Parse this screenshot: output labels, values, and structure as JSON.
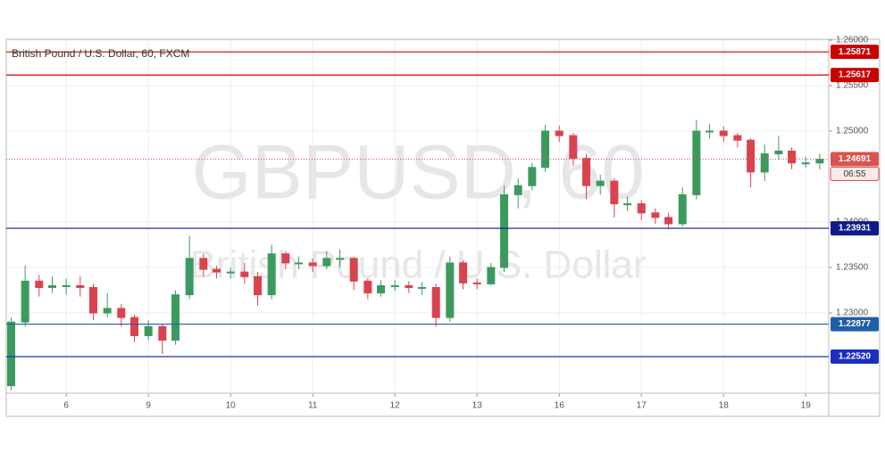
{
  "chart_data": {
    "type": "candlestick",
    "title": "British Pound / U.S. Dollar, 60, FXCM",
    "watermark": "GBPUSD, 60",
    "watermark_subtitle": "British Pound / U.S. Dollar",
    "up_color": "#3c9a5f",
    "down_color": "#d9434f",
    "x": [
      -0.67,
      -0.5,
      -0.33,
      -0.17,
      0,
      0.17,
      0.33,
      0.5,
      0.67,
      0.83,
      1,
      1.17,
      1.33,
      1.5,
      1.67,
      1.83,
      2,
      2.17,
      2.33,
      2.5,
      2.67,
      2.83,
      3,
      3.17,
      3.33,
      3.5,
      3.67,
      3.83,
      4,
      4.17,
      4.33,
      4.5,
      4.67,
      4.83,
      5,
      5.17,
      5.33,
      5.5,
      5.67,
      5.83,
      6,
      6.17,
      6.33,
      6.5,
      6.67,
      6.83,
      7,
      7.17,
      7.33,
      7.5,
      7.67,
      7.83,
      8,
      8.17,
      8.33,
      8.5,
      8.67,
      8.83,
      9,
      9.17
    ],
    "open": [
      1.222,
      1.229,
      1.2335,
      1.2328,
      1.233,
      1.233,
      1.2328,
      1.23,
      1.2305,
      1.2295,
      1.2275,
      1.2285,
      1.227,
      1.232,
      1.236,
      1.2348,
      1.2345,
      1.2345,
      1.234,
      1.232,
      1.2365,
      1.2355,
      1.2355,
      1.2352,
      1.236,
      1.236,
      1.2335,
      1.2322,
      1.233,
      1.233,
      1.2328,
      1.2328,
      1.2295,
      1.2355,
      1.2333,
      1.2332,
      1.235,
      1.243,
      1.244,
      1.246,
      1.25,
      1.2495,
      1.247,
      1.244,
      1.2445,
      1.242,
      1.242,
      1.241,
      1.2405,
      1.2398,
      1.243,
      1.25,
      1.25,
      1.2495,
      1.249,
      1.2455,
      1.2475,
      1.2478,
      1.2465,
      1.2465
    ],
    "high": [
      1.2295,
      1.2352,
      1.2342,
      1.234,
      1.2338,
      1.234,
      1.2332,
      1.2322,
      1.231,
      1.2298,
      1.2292,
      1.2288,
      1.2325,
      1.2385,
      1.2365,
      1.2352,
      1.235,
      1.2355,
      1.2345,
      1.2375,
      1.2368,
      1.2362,
      1.236,
      1.2368,
      1.237,
      1.2362,
      1.2338,
      1.2336,
      1.2336,
      1.2335,
      1.2334,
      1.2332,
      1.2362,
      1.2358,
      1.2338,
      1.2355,
      1.244,
      1.2448,
      1.2465,
      1.2507,
      1.2506,
      1.2498,
      1.2475,
      1.2452,
      1.2448,
      1.2428,
      1.2424,
      1.2415,
      1.241,
      1.2438,
      1.2512,
      1.2508,
      1.2505,
      1.2498,
      1.2492,
      1.2485,
      1.2495,
      1.2482,
      1.2472,
      1.2475
    ],
    "low": [
      1.2215,
      1.2285,
      1.2318,
      1.2322,
      1.232,
      1.2318,
      1.2292,
      1.2295,
      1.2285,
      1.2268,
      1.227,
      1.2255,
      1.2265,
      1.2315,
      1.234,
      1.2338,
      1.2338,
      1.2332,
      1.2308,
      1.2315,
      1.2348,
      1.2348,
      1.2345,
      1.2348,
      1.235,
      1.2325,
      1.2315,
      1.2318,
      1.2324,
      1.2322,
      1.232,
      1.2285,
      1.229,
      1.2326,
      1.2326,
      1.233,
      1.2345,
      1.2415,
      1.2435,
      1.2455,
      1.2488,
      1.2462,
      1.2425,
      1.243,
      1.2405,
      1.2412,
      1.2402,
      1.2398,
      1.2392,
      1.2395,
      1.2425,
      1.2492,
      1.2488,
      1.2482,
      1.2438,
      1.2445,
      1.2468,
      1.2458,
      1.246,
      1.2458
    ],
    "close": [
      1.229,
      1.2335,
      1.2328,
      1.233,
      1.233,
      1.2328,
      1.23,
      1.2305,
      1.2295,
      1.2275,
      1.2285,
      1.227,
      1.232,
      1.236,
      1.2348,
      1.2345,
      1.2345,
      1.234,
      1.232,
      1.2365,
      1.2355,
      1.2355,
      1.2352,
      1.236,
      1.236,
      1.2335,
      1.2322,
      1.233,
      1.233,
      1.2328,
      1.2328,
      1.2295,
      1.2355,
      1.2333,
      1.2332,
      1.235,
      1.243,
      1.244,
      1.246,
      1.25,
      1.2495,
      1.247,
      1.244,
      1.2445,
      1.242,
      1.242,
      1.241,
      1.2405,
      1.2398,
      1.243,
      1.25,
      1.25,
      1.2495,
      1.249,
      1.2455,
      1.2475,
      1.2478,
      1.2465,
      1.2465,
      1.2469
    ],
    "xlim": [
      -0.73,
      9.28
    ],
    "ylim": [
      1.22118,
      1.2601
    ],
    "xticks": [
      {
        "value": 0,
        "label": "6"
      },
      {
        "value": 1,
        "label": "9"
      },
      {
        "value": 2,
        "label": "10"
      },
      {
        "value": 3,
        "label": "11"
      },
      {
        "value": 4,
        "label": "12"
      },
      {
        "value": 5,
        "label": "13"
      },
      {
        "value": 6,
        "label": "16"
      },
      {
        "value": 7,
        "label": "17"
      },
      {
        "value": 8,
        "label": "18"
      },
      {
        "value": 9,
        "label": "19"
      }
    ],
    "yticks": [
      {
        "value": 1.26,
        "label": "1.26000"
      },
      {
        "value": 1.255,
        "label": "1.25500"
      },
      {
        "value": 1.25,
        "label": "1.25000"
      },
      {
        "value": 1.24,
        "label": "1.24000"
      },
      {
        "value": 1.235,
        "label": "1.23500"
      },
      {
        "value": 1.23,
        "label": "1.23000"
      }
    ],
    "grid": true,
    "levels": [
      {
        "value": 1.25871,
        "label": "1.25871",
        "color": "#cc0000"
      },
      {
        "value": 1.25617,
        "label": "1.25617",
        "color": "#cc0000"
      },
      {
        "value": 1.23931,
        "label": "1.23931",
        "color": "#0d1a8c"
      },
      {
        "value": 1.22877,
        "label": "1.22877",
        "color": "#1f5fa8"
      },
      {
        "value": 1.2252,
        "label": "1.22520",
        "color": "#1a2fc0"
      }
    ],
    "last_price": {
      "value": 1.24691,
      "label": "1.24691",
      "color": "#d9534f"
    },
    "countdown": "06:55"
  }
}
